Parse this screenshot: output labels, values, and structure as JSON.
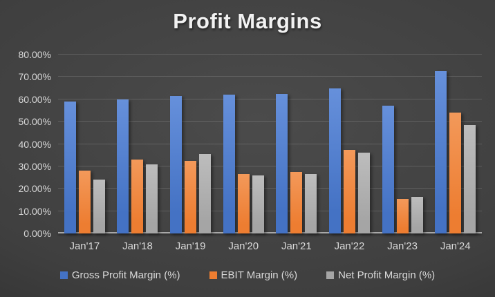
{
  "title": "Profit Margins",
  "chart_data": {
    "type": "bar",
    "title": "Profit Margins",
    "categories": [
      "Jan'17",
      "Jan'18",
      "Jan'19",
      "Jan'20",
      "Jan'21",
      "Jan'22",
      "Jan'23",
      "Jan'24"
    ],
    "series": [
      {
        "name": "Gross Profit Margin (%)",
        "color": "#4472C4",
        "color_light": "#6690DB",
        "values": [
          59,
          60,
          61.5,
          62,
          62.5,
          65,
          57,
          72.5
        ]
      },
      {
        "name": "EBIT Margin (%)",
        "color": "#ED7D31",
        "color_light": "#F3995A",
        "values": [
          28,
          33,
          32.5,
          26.5,
          27.5,
          37.5,
          15.5,
          54
        ]
      },
      {
        "name": "Net Profit Margin (%)",
        "color": "#A5A5A5",
        "color_light": "#BDBDBD",
        "values": [
          24,
          31,
          35.5,
          26,
          26.5,
          36,
          16.5,
          48.5
        ]
      }
    ],
    "xlabel": "",
    "ylabel": "",
    "ylim": [
      0,
      80
    ],
    "y_tick_step": 10,
    "y_ticks": [
      "0.00%",
      "10.00%",
      "20.00%",
      "30.00%",
      "40.00%",
      "50.00%",
      "60.00%",
      "70.00%",
      "80.00%"
    ],
    "grid": true,
    "legend_position": "bottom"
  },
  "colors": {
    "background_center": "#4B4B4B",
    "background_edge": "#242424",
    "text": "#D9D9D9",
    "title_text": "#F2F2F2",
    "gridline": "rgba(255,255,255,0.15)",
    "axis_line": "#A8A8A8"
  }
}
